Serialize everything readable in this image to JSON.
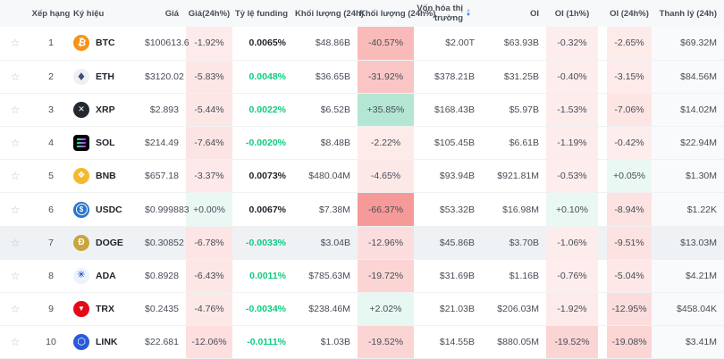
{
  "theme": {
    "neg_rgb": "239,83,80",
    "pos_rgb": "46,189,133",
    "funding_green": "#0ECB81",
    "funding_dark": "#1E2329",
    "text_normal": "#474D57",
    "header_bg": "#F7F8FA",
    "row_highlight": "#EFF2F5",
    "liq_col_bg": "#F9FAFB",
    "sort_active": "#1778FF",
    "sort_inactive": "#B7BDC6",
    "star_glyph": "☆",
    "sort_up": "▲",
    "sort_down": "▼"
  },
  "table": {
    "columns": [
      {
        "id": "fav",
        "label": "",
        "align": "ac"
      },
      {
        "id": "rank",
        "label": "Xếp hạng",
        "align": "ac"
      },
      {
        "id": "sym",
        "label": "Ký hiệu",
        "align": "al"
      },
      {
        "id": "price",
        "label": "Giá",
        "align": "ar"
      },
      {
        "id": "chg24",
        "label": "Giá(24h%)",
        "align": "ac"
      },
      {
        "id": "funding",
        "label": "Tỷ lệ funding",
        "align": "ar"
      },
      {
        "id": "vol",
        "label": "Khối lượng (24h)",
        "align": "ar"
      },
      {
        "id": "volchg",
        "label": "Khối lượng (24h%)",
        "align": "al"
      },
      {
        "id": "mcap",
        "label": "Vốn hóa thị trường",
        "align": "ar",
        "sort": "desc"
      },
      {
        "id": "oi",
        "label": "OI",
        "align": "ar"
      },
      {
        "id": "oi1h",
        "label": "OI (1h%)",
        "align": "ac"
      },
      {
        "id": "gap",
        "label": "",
        "align": "ac"
      },
      {
        "id": "oi24h",
        "label": "OI (24h%)",
        "align": "ac"
      },
      {
        "id": "liq",
        "label": "Thanh lý (24h)",
        "align": "ar"
      }
    ],
    "rows": [
      {
        "rank": "1",
        "sym": "BTC",
        "icon": {
          "glyph": "₿",
          "bg": "#F7931A",
          "fg": "#FFFFFF",
          "shape": "circle"
        },
        "price": "$100613.6",
        "chg24": "-1.92%",
        "funding": {
          "v": "0.0065%",
          "tone": "dark"
        },
        "vol": "$48.86B",
        "volchg": "-40.57%",
        "mcap": "$2.00T",
        "oi": "$63.93B",
        "oi1h": "-0.32%",
        "oi24h": "-2.65%",
        "liq": "$69.32M",
        "highlighted": false
      },
      {
        "rank": "2",
        "sym": "ETH",
        "icon": {
          "glyph": "◆",
          "bg": "#EDF0F4",
          "fg": "#454A75",
          "shape": "circle"
        },
        "price": "$3120.02",
        "chg24": "-5.83%",
        "funding": {
          "v": "0.0048%",
          "tone": "green"
        },
        "vol": "$36.65B",
        "volchg": "-31.92%",
        "mcap": "$378.21B",
        "oi": "$31.25B",
        "oi1h": "-0.40%",
        "oi24h": "-3.15%",
        "liq": "$84.56M",
        "highlighted": false
      },
      {
        "rank": "3",
        "sym": "XRP",
        "icon": {
          "glyph": "✕",
          "bg": "#23292F",
          "fg": "#FFFFFF",
          "shape": "circle"
        },
        "price": "$2.893",
        "chg24": "-5.44%",
        "funding": {
          "v": "0.0022%",
          "tone": "green"
        },
        "vol": "$6.52B",
        "volchg": "+35.85%",
        "mcap": "$168.43B",
        "oi": "$5.97B",
        "oi1h": "-1.53%",
        "oi24h": "-7.06%",
        "liq": "$14.02M",
        "highlighted": false
      },
      {
        "rank": "4",
        "sym": "SOL",
        "icon": {
          "glyph": "bars",
          "bg": "#000000",
          "fg": "#FFFFFF",
          "shape": "square"
        },
        "price": "$214.49",
        "chg24": "-7.64%",
        "funding": {
          "v": "-0.0020%",
          "tone": "green"
        },
        "vol": "$8.48B",
        "volchg": "-2.22%",
        "mcap": "$105.45B",
        "oi": "$6.61B",
        "oi1h": "-1.19%",
        "oi24h": "-0.42%",
        "liq": "$22.94M",
        "highlighted": false
      },
      {
        "rank": "5",
        "sym": "BNB",
        "icon": {
          "glyph": "❖",
          "bg": "#F3BA2F",
          "fg": "#FFFFFF",
          "shape": "circle"
        },
        "price": "$657.18",
        "chg24": "-3.37%",
        "funding": {
          "v": "0.0073%",
          "tone": "dark"
        },
        "vol": "$480.04M",
        "volchg": "-4.65%",
        "mcap": "$93.94B",
        "oi": "$921.81M",
        "oi1h": "-0.53%",
        "oi24h": "+0.05%",
        "liq": "$1.30M",
        "highlighted": false
      },
      {
        "rank": "6",
        "sym": "USDC",
        "icon": {
          "glyph": "$",
          "bg": "#2775CA",
          "fg": "#FFFFFF",
          "shape": "circle"
        },
        "price": "$0.999883",
        "chg24": "+0.00%",
        "funding": {
          "v": "0.0067%",
          "tone": "dark"
        },
        "vol": "$7.38M",
        "volchg": "-66.37%",
        "mcap": "$53.32B",
        "oi": "$16.98M",
        "oi1h": "+0.10%",
        "oi24h": "-8.94%",
        "liq": "$1.22K",
        "highlighted": false
      },
      {
        "rank": "7",
        "sym": "DOGE",
        "icon": {
          "glyph": "Ð",
          "bg": "#C9A53E",
          "fg": "#FFFFFF",
          "shape": "circle"
        },
        "price": "$0.30852",
        "chg24": "-6.78%",
        "funding": {
          "v": "-0.0033%",
          "tone": "green"
        },
        "vol": "$3.04B",
        "volchg": "-12.96%",
        "mcap": "$45.86B",
        "oi": "$3.70B",
        "oi1h": "-1.06%",
        "oi24h": "-9.51%",
        "liq": "$13.03M",
        "highlighted": true
      },
      {
        "rank": "8",
        "sym": "ADA",
        "icon": {
          "glyph": "✳",
          "bg": "#EDF3FD",
          "fg": "#0033AD",
          "shape": "circle"
        },
        "price": "$0.8928",
        "chg24": "-6.43%",
        "funding": {
          "v": "0.0011%",
          "tone": "green"
        },
        "vol": "$785.63M",
        "volchg": "-19.72%",
        "mcap": "$31.69B",
        "oi": "$1.16B",
        "oi1h": "-0.76%",
        "oi24h": "-5.04%",
        "liq": "$4.21M",
        "highlighted": false
      },
      {
        "rank": "9",
        "sym": "TRX",
        "icon": {
          "glyph": "▼",
          "bg": "#E50916",
          "fg": "#FFFFFF",
          "shape": "circle"
        },
        "price": "$0.2435",
        "chg24": "-4.76%",
        "funding": {
          "v": "-0.0034%",
          "tone": "green"
        },
        "vol": "$238.46M",
        "volchg": "+2.02%",
        "mcap": "$21.03B",
        "oi": "$206.03M",
        "oi1h": "-1.92%",
        "oi24h": "-12.95%",
        "liq": "$458.04K",
        "highlighted": false
      },
      {
        "rank": "10",
        "sym": "LINK",
        "icon": {
          "glyph": "⬡",
          "bg": "#2A5ADA",
          "fg": "#FFFFFF",
          "shape": "circle"
        },
        "price": "$22.681",
        "chg24": "-12.06%",
        "funding": {
          "v": "-0.0111%",
          "tone": "green"
        },
        "vol": "$1.03B",
        "volchg": "-19.52%",
        "mcap": "$14.55B",
        "oi": "$880.05M",
        "oi1h": "-19.52%",
        "oi24h": "-19.08%",
        "liq": "$3.41M",
        "highlighted": false
      }
    ]
  }
}
